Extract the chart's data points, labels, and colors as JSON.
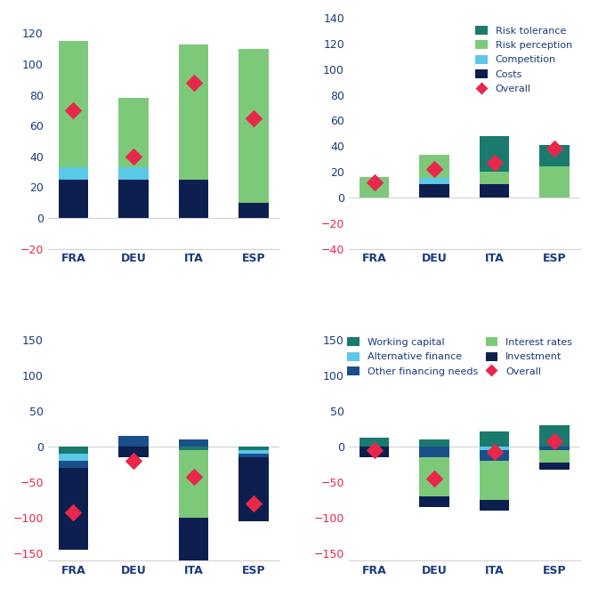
{
  "top_left": {
    "categories": [
      "FRA",
      "DEU",
      "ITA",
      "ESP"
    ],
    "costs": [
      25,
      25,
      25,
      10
    ],
    "competition": [
      8,
      8,
      0,
      0
    ],
    "risk_perception": [
      82,
      45,
      88,
      100
    ],
    "risk_tolerance": [
      0,
      0,
      0,
      0
    ],
    "overall": [
      70,
      40,
      88,
      65
    ],
    "ylim": [
      -20,
      130
    ],
    "yticks": [
      -20,
      0,
      20,
      40,
      60,
      80,
      100,
      120
    ]
  },
  "top_right": {
    "categories": [
      "FRA",
      "DEU",
      "ITA",
      "ESP"
    ],
    "costs": [
      0,
      10,
      10,
      0
    ],
    "competition": [
      0,
      5,
      0,
      0
    ],
    "risk_perception": [
      16,
      18,
      10,
      24
    ],
    "risk_tolerance": [
      0,
      0,
      28,
      17
    ],
    "overall": [
      12,
      22,
      27,
      38
    ],
    "ylim": [
      -40,
      140
    ],
    "yticks": [
      -40,
      -20,
      0,
      20,
      40,
      60,
      80,
      100,
      120,
      140
    ]
  },
  "bottom_left": {
    "categories": [
      "FRA",
      "DEU",
      "ITA",
      "ESP"
    ],
    "working_capital": [
      -10,
      0,
      -5,
      -5
    ],
    "other_financing_needs": [
      -10,
      15,
      10,
      -5
    ],
    "alternative_finance": [
      -10,
      0,
      0,
      -5
    ],
    "interest_rates": [
      0,
      0,
      -95,
      0
    ],
    "investment": [
      -115,
      -15,
      -90,
      -90
    ],
    "overall": [
      -92,
      -20,
      -42,
      -80
    ],
    "ylim": [
      -160,
      165
    ],
    "yticks": [
      -150,
      -100,
      -50,
      0,
      50,
      100,
      150
    ]
  },
  "bottom_right": {
    "categories": [
      "FRA",
      "DEU",
      "ITA",
      "ESP"
    ],
    "working_capital": [
      13,
      10,
      22,
      30
    ],
    "other_financing_needs": [
      0,
      -15,
      -15,
      -5
    ],
    "alternative_finance": [
      0,
      0,
      -5,
      0
    ],
    "interest_rates": [
      0,
      -55,
      -55,
      -18
    ],
    "investment": [
      -15,
      -15,
      -15,
      -10
    ],
    "overall": [
      -5,
      -45,
      -8,
      8
    ],
    "ylim": [
      -160,
      165
    ],
    "yticks": [
      -150,
      -100,
      -50,
      0,
      50,
      100,
      150
    ]
  },
  "colors": {
    "risk_tolerance": "#1a7a6e",
    "risk_perception": "#7dc97a",
    "competition": "#5bc8e8",
    "costs": "#0d1f4e",
    "working_capital": "#1a7a6e",
    "other_financing_needs": "#1a4f8a",
    "alternative_finance": "#5bc8e8",
    "interest_rates": "#7dc97a",
    "investment": "#0d1f4e",
    "overall": "#e8274b"
  },
  "text_color": "#1a3a7a",
  "neg_tick_color": "#e8274b"
}
